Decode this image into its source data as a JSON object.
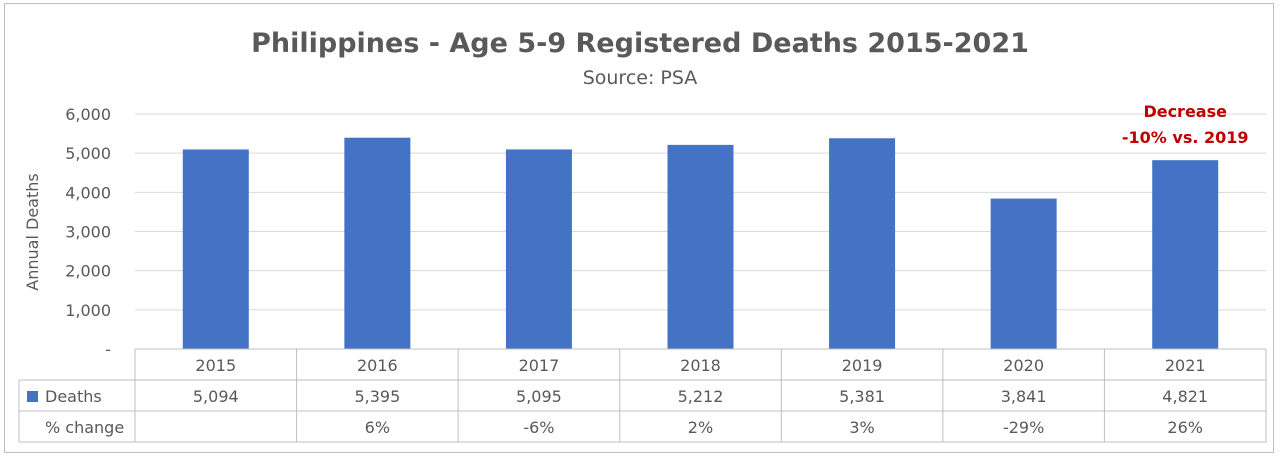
{
  "chart_data": {
    "type": "bar",
    "title": "Philippines - Age 5-9 Registered Deaths 2015-2021",
    "subtitle": "Source: PSA",
    "ylabel": "Annual Deaths",
    "ylim": [
      0,
      6000
    ],
    "yticks": [
      "-",
      "1,000",
      "2,000",
      "3,000",
      "4,000",
      "5,000",
      "6,000"
    ],
    "grid": true,
    "categories": [
      "2015",
      "2016",
      "2017",
      "2018",
      "2019",
      "2020",
      "2021"
    ],
    "series": [
      {
        "name": "Deaths",
        "values": [
          5094,
          5395,
          5095,
          5212,
          5381,
          3841,
          4821
        ],
        "labels": [
          "5,094",
          "5,395",
          "5,095",
          "5,212",
          "5,381",
          "3,841",
          "4,821"
        ],
        "color": "#4472c4"
      }
    ],
    "table": {
      "rows": [
        {
          "label": "Deaths",
          "values": [
            "5,094",
            "5,395",
            "5,095",
            "5,212",
            "5,381",
            "3,841",
            "4,821"
          ]
        },
        {
          "label": "% change",
          "values": [
            "",
            "6%",
            "-6%",
            "2%",
            "3%",
            "-29%",
            "26%"
          ]
        }
      ]
    },
    "annotation": {
      "lines": [
        "Decrease",
        "-10% vs. 2019"
      ],
      "category": "2021",
      "color": "#c00000"
    }
  }
}
